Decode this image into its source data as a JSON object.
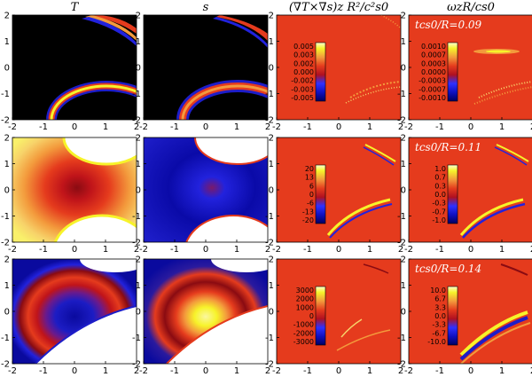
{
  "figure": {
    "column_titles": [
      "T",
      "s",
      "(∇T×∇s)z R²/c²s0",
      "ωzR/cs0"
    ],
    "time_labels": [
      "tcs0/R=0.09",
      "tcs0/R=0.11",
      "tcs0/R=0.14"
    ]
  },
  "colors": {
    "background": "#ffffff",
    "field_red": "#e53b1d",
    "panel_black": "#000000",
    "deep_blue": "#0a0a9e",
    "mid_blue": "#2222dd",
    "yellow": "#f7f32a",
    "orange": "#f39a3c",
    "dark_red": "#8a0b12"
  },
  "chart_data": [
    {
      "type": "heatmap",
      "description": "6 by 2 is wrong; this is a 3x4 grid of contour-filled panels",
      "xlim": [
        -2,
        2
      ],
      "ylim": [
        -2,
        2
      ],
      "x_ticks": [
        "-2",
        "-1",
        "0",
        "1",
        "2"
      ],
      "y_ticks": [
        "-2",
        "-1",
        "0",
        "1",
        "2"
      ],
      "rows": [
        {
          "time": 0.09,
          "panels": [
            {
              "field": "T",
              "colorbar": null
            },
            {
              "field": "s",
              "colorbar": null
            },
            {
              "field": "(∇T×∇s)z R²/c²s0",
              "colorbar": [
                "0.005",
                "0.003",
                "0.002",
                "0.000",
                "-0.002",
                "-0.003",
                "-0.005"
              ]
            },
            {
              "field": "ωzR/cs0",
              "colorbar": [
                "0.0010",
                "0.0007",
                "0.0003",
                "0.0000",
                "-0.0003",
                "-0.0007",
                "-0.0010"
              ]
            }
          ]
        },
        {
          "time": 0.11,
          "panels": [
            {
              "field": "T",
              "colorbar": null
            },
            {
              "field": "s",
              "colorbar": null
            },
            {
              "field": "(∇T×∇s)z R²/c²s0",
              "colorbar": [
                "20",
                "13",
                "6",
                "0",
                "-6",
                "-13",
                "-20"
              ]
            },
            {
              "field": "ωzR/cs0",
              "colorbar": [
                "1.0",
                "0.7",
                "0.3",
                "0.0",
                "-0.3",
                "-0.7",
                "-1.0"
              ]
            }
          ]
        },
        {
          "time": 0.14,
          "panels": [
            {
              "field": "T",
              "colorbar": null
            },
            {
              "field": "s",
              "colorbar": null
            },
            {
              "field": "(∇T×∇s)z R²/c²s0",
              "colorbar": [
                "3000",
                "2000",
                "1000",
                "0",
                "-1000",
                "-2000",
                "-3000"
              ]
            },
            {
              "field": "ωzR/cs0",
              "colorbar": [
                "10.0",
                "6.7",
                "3.3",
                "0.0",
                "-3.3",
                "-6.7",
                "-10.0"
              ]
            }
          ]
        }
      ]
    }
  ]
}
